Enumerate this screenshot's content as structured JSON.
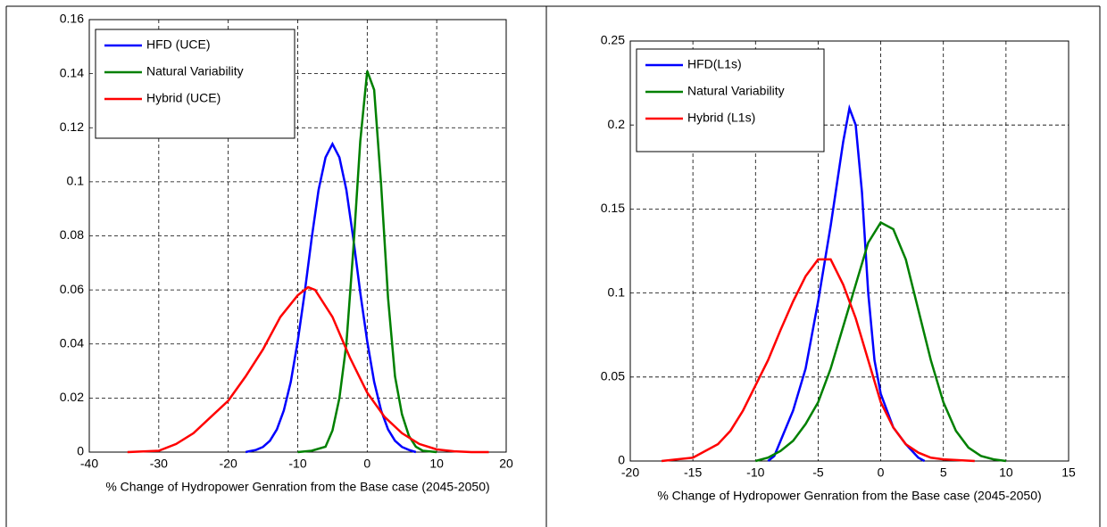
{
  "chart_data": [
    {
      "type": "line",
      "x_label": "% Change of Hydropower Genration from the Base case (2045-2050)",
      "xlim": [
        -40,
        20
      ],
      "ylim": [
        0,
        0.16
      ],
      "xticks": [
        -40,
        -30,
        -20,
        -10,
        0,
        10,
        20
      ],
      "yticks": [
        0,
        0.02,
        0.04,
        0.06,
        0.08,
        0.1,
        0.12,
        0.14,
        0.16
      ],
      "grid": true,
      "legend": "upper-left",
      "series": [
        {
          "name": "HFD (UCE)",
          "color": "#0000ff",
          "x": [
            -17.5,
            -17,
            -16,
            -15,
            -14,
            -13,
            -12,
            -11,
            -10,
            -9,
            -8,
            -7,
            -6,
            -5,
            -4,
            -3,
            -2,
            -1,
            0,
            1,
            2,
            3,
            4,
            5,
            6,
            7
          ],
          "values": [
            0,
            0.0003,
            0.0008,
            0.0019,
            0.0042,
            0.0084,
            0.0154,
            0.026,
            0.041,
            0.059,
            0.079,
            0.097,
            0.109,
            0.114,
            0.109,
            0.097,
            0.079,
            0.059,
            0.041,
            0.026,
            0.0154,
            0.0084,
            0.0042,
            0.0019,
            0.0008,
            0
          ]
        },
        {
          "name": "Natural Variability",
          "color": "#008000",
          "x": [
            -10,
            -8,
            -6,
            -5,
            -4,
            -3,
            -2,
            -1,
            0,
            1,
            2,
            3,
            4,
            5,
            6,
            7,
            8,
            10
          ],
          "values": [
            0,
            0.0005,
            0.002,
            0.008,
            0.02,
            0.04,
            0.075,
            0.115,
            0.141,
            0.134,
            0.099,
            0.057,
            0.028,
            0.014,
            0.006,
            0.002,
            0.0005,
            0
          ]
        },
        {
          "name": "Hybrid (UCE)",
          "color": "#ff0000",
          "x": [
            -34.5,
            -30,
            -27.5,
            -25,
            -22.5,
            -20,
            -17.5,
            -15,
            -12.5,
            -10,
            -8.5,
            -7.5,
            -5,
            -2.5,
            0,
            2.5,
            5,
            7.5,
            10,
            12.5,
            15,
            17.5
          ],
          "values": [
            0,
            0.0005,
            0.003,
            0.007,
            0.013,
            0.019,
            0.028,
            0.038,
            0.05,
            0.058,
            0.061,
            0.06,
            0.05,
            0.035,
            0.022,
            0.013,
            0.007,
            0.003,
            0.001,
            0.0003,
            0,
            0
          ]
        }
      ]
    },
    {
      "type": "line",
      "x_label": "% Change of Hydropower Genration from the Base case (2045-2050)",
      "xlim": [
        -20,
        15
      ],
      "ylim": [
        0,
        0.25
      ],
      "xticks": [
        -20,
        -15,
        -10,
        -5,
        0,
        5,
        10,
        15
      ],
      "yticks": [
        0,
        0.05,
        0.1,
        0.15,
        0.2,
        0.25
      ],
      "grid": true,
      "legend": "upper-left",
      "series": [
        {
          "name": "HFD(L1s)",
          "color": "#0000ff",
          "x": [
            -9,
            -8.5,
            -8,
            -7,
            -6,
            -5,
            -4,
            -3,
            -2.5,
            -2,
            -1.5,
            -1,
            -0.5,
            0,
            1,
            2,
            3,
            3.5
          ],
          "values": [
            0,
            0.003,
            0.012,
            0.03,
            0.055,
            0.095,
            0.14,
            0.19,
            0.21,
            0.2,
            0.16,
            0.1,
            0.06,
            0.04,
            0.02,
            0.01,
            0.002,
            0
          ]
        },
        {
          "name": "Natural Variability",
          "color": "#008000",
          "x": [
            -10,
            -9,
            -8,
            -7,
            -6,
            -5,
            -4,
            -3,
            -2,
            -1,
            0,
            1,
            2,
            3,
            4,
            5,
            6,
            7,
            8,
            9,
            10
          ],
          "values": [
            0,
            0.002,
            0.006,
            0.012,
            0.022,
            0.035,
            0.055,
            0.08,
            0.105,
            0.13,
            0.142,
            0.138,
            0.12,
            0.09,
            0.06,
            0.035,
            0.018,
            0.008,
            0.003,
            0.001,
            0
          ]
        },
        {
          "name": "Hybrid (L1s)",
          "color": "#ff0000",
          "x": [
            -17.5,
            -15,
            -13,
            -12,
            -11,
            -10,
            -9,
            -8,
            -7,
            -6,
            -5,
            -4,
            -3,
            -2,
            -1,
            0,
            1,
            2,
            3,
            4,
            5,
            7.5
          ],
          "values": [
            0,
            0.002,
            0.01,
            0.018,
            0.03,
            0.045,
            0.06,
            0.078,
            0.095,
            0.11,
            0.12,
            0.12,
            0.105,
            0.085,
            0.06,
            0.035,
            0.02,
            0.01,
            0.005,
            0.002,
            0.001,
            0
          ]
        }
      ]
    }
  ]
}
